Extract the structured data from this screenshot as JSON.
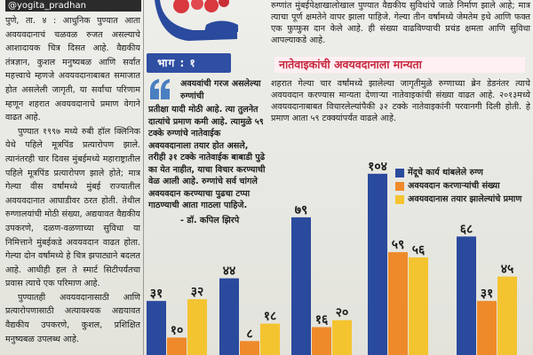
{
  "byline": "@yogita_pradhan",
  "left_column": {
    "paragraphs": [
      "पुणे, ता. ४ : आधुनिक पुण्यात आता अवयवदानाचं चळवळ रुजत असल्याचे आशादायक चित्र दिसत आहे. वैद्यकीय तंत्रज्ञान, कुशल मनुष्यबळ आणि सर्वांत महत्त्वाचे म्हणजे अवयवदानाबाबत समाजात होत असलेली जागृती, या सर्वांचा परिणाम म्हणून शहरात अवयवदानाचे प्रमाण वेगाने वाढत आहे.",
      "पुण्यात १९९७ मध्ये रुबी हॉल क्लिनिक येथे पहिले मूत्रपिंड प्रत्यारोपण झाले. त्यानंतरही चार दिवस मुंबईमध्ये महाराष्ट्रातील पहिले मूत्रपिंड प्रत्यारोपण झाले होते; मात्र गेल्या वीस वर्षांमध्ये मुंबई राज्यातील अवयवदानात आघाडीवर ठरत होती. तेथील रुग्णालयांची मोठी संख्या, अद्ययावत वैद्यकीय उपकरणे, दळण-वळणाच्या सुविधा या निमित्ताने मुंबईकडे अवयवदान वाढत होता. गेल्या दोन वर्षांमध्ये हे चित्र झपाट्याने बदलत आहे. आधीही हल ते स्मार्ट सिटीपर्यंतचा प्रवास त्याचे एक परिमाण आहे.",
      "पुण्यातही अवयवदानासाठी आणि प्रत्यारोपणासाठी अत्यावश्यक अद्ययावत वैद्यकीय उपकरणे, कुशल, प्रशिक्षित मनुष्यबळ उपलब्ध आहे."
    ]
  },
  "badge": "भाग : १",
  "top_right": {
    "paragraph": "रुग्णांत मुंबईपेक्षाखालोखाल पुण्यात वैद्यकीय सुविधांचे जाळे निर्माण झाले आहे; मात्र त्याचा पूर्ण क्षमतेने वापर झाला पाहिजे. गेल्या तीन वर्षांमध्ये जेमतेम इथे आणि फक्त एक फुप्फुस दान केले आहे. ही संख्या वाढविण्याची प्रचंड क्षमता आणि सुविधा आपल्याकडे आहे."
  },
  "subheading": "नातेवाइकांची अवयवदानाला मान्यता",
  "mid_right": {
    "paragraph": "शहरात गेल्या चार वर्षांमध्ये झालेल्या जागृतीमुळे रुग्णाच्या ब्रेन डेडनंतर त्याचे अवयवदान करण्यास मान्यता देणाऱ्या नातेवाइकांची संख्या वाढत आहे. २०१३मध्ये अवयवदानाबाबत विचारलेल्यांपैकी ३२ टक्के नातेवाइकांनी परवानगी दिली होती. हे प्रमाण आता ५९ टक्क्यांपर्यंत वाढले आहे."
  },
  "quote": {
    "text_a": "अवयवांची गरज असलेल्या रुग्णांची",
    "text_b": "प्रतीक्षा यादी मोठी आहे. त्या तुलनेत दात्यांचे प्रमाण कमी आहे. त्यामुळे ५९ टक्के रुग्णांचे नातेवाईक अवयवदानाला तयार होत असले, तरीही ३१ टक्के नातेवाईक बाबाडी पुढे का येत नाहीत, याचा विचार करण्याची वेळ आली आहे. रुग्णांचे सर्व चांगले अवयवदान करण्याचा पुढचा टप्पा गाठण्याची आता गाठला पाहिजे.",
    "attribution": "- डॉ. कपिल झिरपे"
  },
  "chart_data": {
    "type": "bar",
    "categories": [
      "",
      "",
      "",
      "",
      ""
    ],
    "series": [
      {
        "name": "मेंदूचे कार्य थांबलेले रुग्ण",
        "color": "#2a4a9d",
        "values": [
          31,
          44,
          79,
          104,
          68
        ]
      },
      {
        "name": "अवयवदान करणाऱ्यांची संख्या",
        "color": "#ef8a2a",
        "values": [
          10,
          8,
          16,
          59,
          31
        ]
      },
      {
        "name": "अवयवदानास तयार झालेल्यांचे प्रमाण",
        "color": "#f4c430",
        "values": [
          32,
          18,
          20,
          56,
          45
        ]
      }
    ],
    "value_labels": [
      [
        "३१",
        "१०",
        "३२"
      ],
      [
        "४४",
        "८",
        "१८"
      ],
      [
        "७९",
        "१६",
        "२०"
      ],
      [
        "१०४",
        "५९",
        "५६"
      ],
      [
        "६८",
        "३१",
        "४५"
      ]
    ],
    "ylim": [
      0,
      110
    ],
    "grid": false,
    "legend_position": "top-right",
    "title": "",
    "xlabel": "",
    "ylabel": ""
  },
  "colors": {
    "badge_bg": "#2f4fa3",
    "subheading_text": "#c8283f",
    "quote_mark": "#4a7fc1"
  },
  "icons": {
    "logo": "hands-with-hearts-logo",
    "quote": "quote-mark-icon"
  }
}
